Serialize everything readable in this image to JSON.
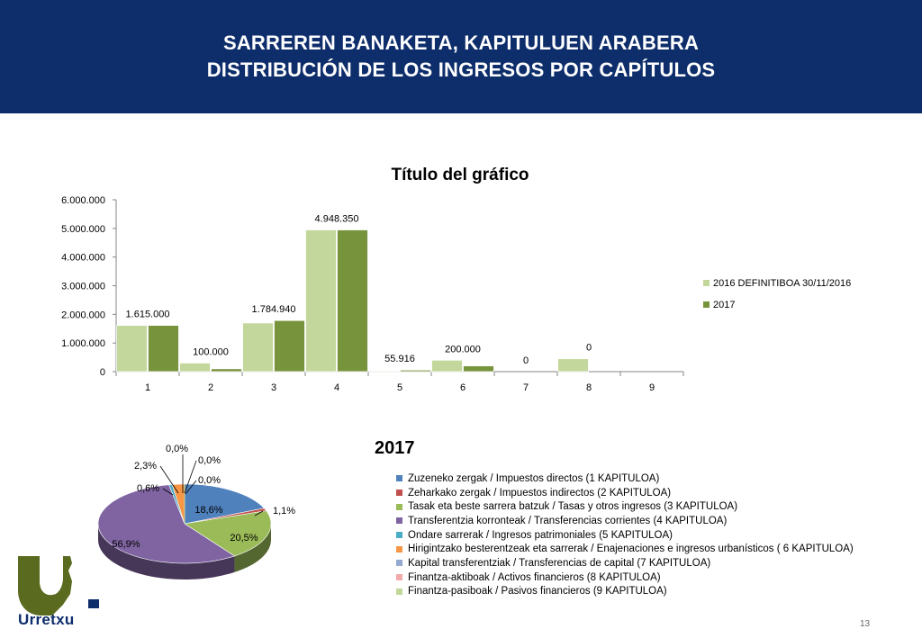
{
  "header": {
    "title_line1": "SARREREN BANAKETA, KAPITULUEN ARABERA",
    "title_line2": "DISTRIBUCIÓN DE LOS INGRESOS POR CAPÍTULOS"
  },
  "chart_data": [
    {
      "type": "bar",
      "title": "Título del gráfico",
      "categories": [
        "1",
        "2",
        "3",
        "4",
        "5",
        "6",
        "7",
        "8",
        "9"
      ],
      "ylim": [
        0,
        6000000
      ],
      "yticks": [
        0,
        1000000,
        2000000,
        3000000,
        4000000,
        5000000,
        6000000
      ],
      "ytick_labels": [
        "0",
        "1.000.000",
        "2.000.000",
        "3.000.000",
        "4.000.000",
        "5.000.000",
        "6.000.000"
      ],
      "grid": false,
      "legend_position": "right",
      "series": [
        {
          "name": "2016 DEFINITIBOA 30/11/2016",
          "color": "#c3d69b",
          "values": [
            1615000,
            300000,
            1700000,
            4948350,
            30000,
            400000,
            0,
            450000,
            0
          ]
        },
        {
          "name": "2017",
          "color": "#77933c",
          "values": [
            1615000,
            100000,
            1784940,
            4948350,
            55916,
            200000,
            0,
            0,
            0
          ],
          "data_labels": [
            "1.615.000",
            "100.000",
            "1.784.940",
            "4.948.350",
            "55.916",
            "200.000",
            "0",
            "0",
            ""
          ]
        }
      ]
    },
    {
      "type": "pie",
      "title": "2017",
      "style": "3d",
      "slices": [
        {
          "label": "Zuzeneko zergak / Impuestos directos (1 KAPITULOA)",
          "value": 18.6,
          "value_label": "18,6%",
          "color": "#4f81bd"
        },
        {
          "label": "Zeharkako zergak / Impuestos indirectos (2 KAPITULOA)",
          "value": 1.1,
          "value_label": "1,1%",
          "color": "#c0504d"
        },
        {
          "label": "Tasak eta beste sarrera batzuk / Tasas y otros ingresos (3 KAPITULOA)",
          "value": 20.5,
          "value_label": "20,5%",
          "color": "#9bbb59"
        },
        {
          "label": "Transferentzia korronteak / Transferencias corrientes (4 KAPITULOA)",
          "value": 56.9,
          "value_label": "56,9%",
          "color": "#8064a2"
        },
        {
          "label": "Ondare sarrerak / Ingresos patrimoniales (5 KAPITULOA)",
          "value": 0.6,
          "value_label": "0,6%",
          "color": "#4bacc6"
        },
        {
          "label": "Hirigintzako besterentzeak eta sarrerak / Enajenaciones e ingresos urbanísticos ( 6 KAPITULOA)",
          "value": 2.3,
          "value_label": "2,3%",
          "color": "#f79646"
        },
        {
          "label": "Kapital transferentziak / Transferencias de capital (7 KAPITULOA)",
          "value": 0.0,
          "value_label": "0,0%",
          "color": "#2c4d75"
        },
        {
          "label": "Finantza-aktiboak / Activos financieros (8 KAPITULOA)",
          "value": 0.0,
          "value_label": "0,0%",
          "color": "#f2aaaa"
        },
        {
          "label": "Finantza-pasiboak / Pasivos financieros (9 KAPITULOA)",
          "value": 0.0,
          "value_label": "0,0%",
          "color": "#c3d69b"
        }
      ]
    }
  ],
  "legend2_colors": [
    "#4f81bd",
    "#c0504d",
    "#9bbb59",
    "#8064a2",
    "#4bacc6",
    "#f79646",
    "#93a9cf",
    "#f2aaaa",
    "#c3d69b"
  ],
  "logo": {
    "name": "Urretxu",
    "color": "#0d2d6b",
    "mark_color": "#5a6b1f"
  },
  "page_number": "13"
}
